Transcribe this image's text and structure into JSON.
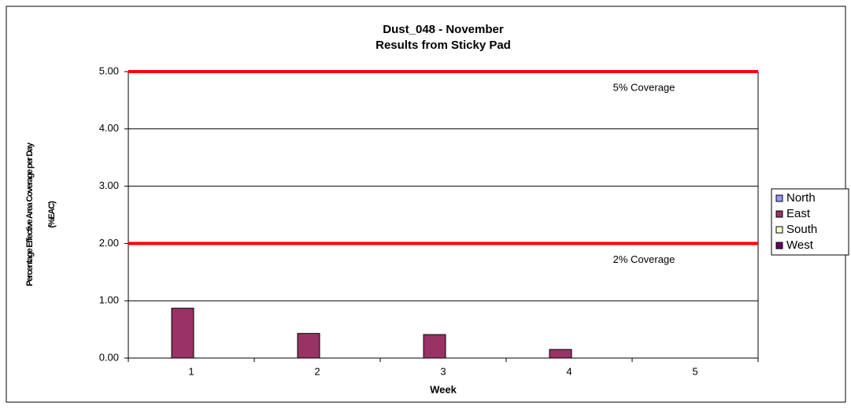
{
  "chart_data": {
    "type": "bar",
    "title": "Dust_048 - November",
    "subtitle": "Results from Sticky Pad",
    "x_label": "Week",
    "y_label": "Percentage Effective Area Coverage per Day",
    "y_label_unit": "(%EAC)",
    "categories": [
      "1",
      "2",
      "3",
      "4",
      "5"
    ],
    "series": [
      {
        "name": "North",
        "color": "#9999ff",
        "values": [
          null,
          null,
          null,
          null,
          null
        ]
      },
      {
        "name": "East",
        "color": "#993366",
        "values": [
          0.87,
          0.43,
          0.41,
          0.15,
          null
        ]
      },
      {
        "name": "South",
        "color": "#ffffcc",
        "values": [
          null,
          null,
          null,
          null,
          null
        ]
      },
      {
        "name": "West",
        "color": "#660066",
        "values": [
          null,
          null,
          null,
          null,
          null
        ]
      }
    ],
    "ylim": [
      0,
      5
    ],
    "yticks": [
      {
        "value": 0,
        "label": "0.00"
      },
      {
        "value": 1,
        "label": "1.00"
      },
      {
        "value": 2,
        "label": "2.00"
      },
      {
        "value": 3,
        "label": "3.00"
      },
      {
        "value": 4,
        "label": "4.00"
      },
      {
        "value": 5,
        "label": "5.00"
      }
    ],
    "grid": true,
    "legend": "right",
    "reference_lines": [
      {
        "value": 5,
        "label": "5% Coverage",
        "color": "#ff0000"
      },
      {
        "value": 2,
        "label": "2% Coverage",
        "color": "#ff0000"
      }
    ]
  }
}
